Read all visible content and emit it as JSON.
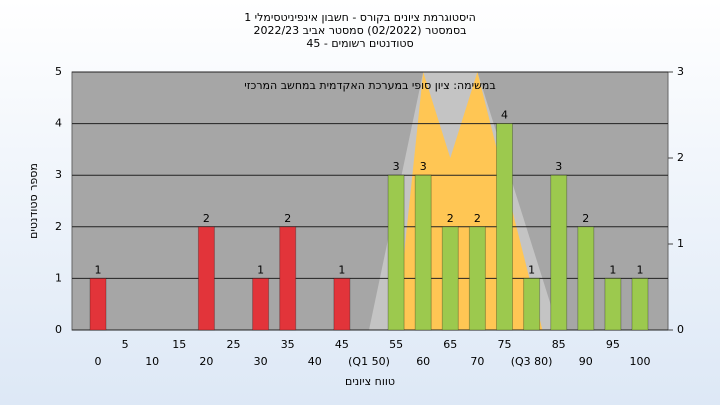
{
  "chart_data": {
    "type": "bar",
    "title": "היסטוגרמת ציונים בקורס - חשבון אינפיניטסימלי 1",
    "subtitle": "בסמסטר  (02/2022)  סמסטר אביב 2022/23",
    "subtitle2": "סטודנטים רשומים - 45",
    "annotation": "במשימה: ציון סופי במערכת האקדמית במחשב המרכזי",
    "xlabel": "טווח ציונים",
    "ylabel": "מספר סטודנטים",
    "categories": [
      "0",
      "5",
      "10",
      "15",
      "20",
      "25",
      "30",
      "35",
      "40",
      "45",
      "(Q1 50)",
      "55",
      "60",
      "65",
      "70",
      "75",
      "(Q3 80)",
      "85",
      "90",
      "95",
      "100"
    ],
    "values": [
      1,
      null,
      null,
      null,
      2,
      null,
      1,
      2,
      null,
      1,
      null,
      3,
      3,
      2,
      2,
      4,
      1,
      3,
      2,
      1,
      1
    ],
    "colors": [
      "#e2343a",
      null,
      null,
      null,
      "#e2343a",
      null,
      "#e2343a",
      "#e2343a",
      null,
      "#e2343a",
      null,
      "#9cc94e",
      "#9cc94e",
      "#9cc94e",
      "#9cc94e",
      "#9cc94e",
      "#9cc94e",
      "#9cc94e",
      "#9cc94e",
      "#9cc94e",
      "#9cc94e"
    ],
    "ylim": [
      0,
      5
    ],
    "yticks": [
      0,
      1,
      2,
      3,
      4,
      5
    ],
    "y2lim": [
      0,
      3
    ],
    "y2ticks": [
      0,
      1,
      2,
      3
    ],
    "grid": true,
    "areas": [
      {
        "color": "#c4c4c4",
        "axis": "y2",
        "x": [
          50,
          60,
          70,
          85
        ],
        "values": [
          0,
          3,
          3,
          0
        ]
      },
      {
        "color": "#ffc654",
        "axis": "y2",
        "x": [
          55,
          60,
          65,
          70,
          82
        ],
        "values": [
          0,
          3,
          2,
          3,
          0
        ]
      }
    ]
  }
}
